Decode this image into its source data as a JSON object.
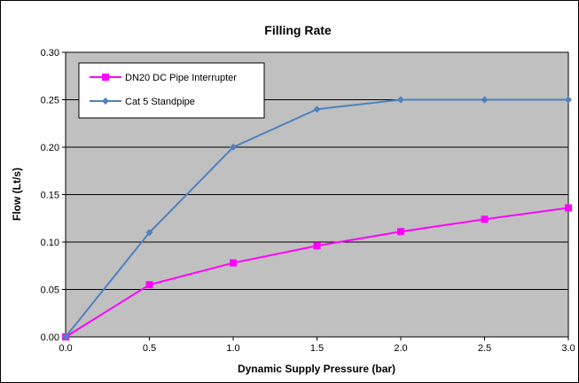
{
  "chart_data": {
    "type": "line",
    "title": "Filling Rate",
    "xlabel": "Dynamic Supply Pressure (bar)",
    "ylabel": "Flow (Lt/s)",
    "xlim": [
      0.0,
      3.0
    ],
    "ylim": [
      0.0,
      0.3
    ],
    "x_ticks": [
      "0.0",
      "0.5",
      "1.0",
      "1.5",
      "2.0",
      "2.5",
      "3.0"
    ],
    "y_ticks": [
      "0.00",
      "0.05",
      "0.10",
      "0.15",
      "0.20",
      "0.25",
      "0.30"
    ],
    "grid": "horizontal",
    "legend_position": "top-left",
    "plot_background": "#c0c0c0",
    "x": [
      0.0,
      0.5,
      1.0,
      1.5,
      2.0,
      2.5,
      3.0
    ],
    "series": [
      {
        "name": "DN20 DC Pipe Interrupter",
        "color": "#ff00ff",
        "marker": "square",
        "values": [
          0.0,
          0.055,
          0.078,
          0.096,
          0.111,
          0.124,
          0.136
        ]
      },
      {
        "name": "Cat 5 Standpipe",
        "color": "#4f81bd",
        "marker": "diamond",
        "values": [
          0.0,
          0.11,
          0.2,
          0.24,
          0.25,
          0.25,
          0.25
        ]
      }
    ]
  }
}
